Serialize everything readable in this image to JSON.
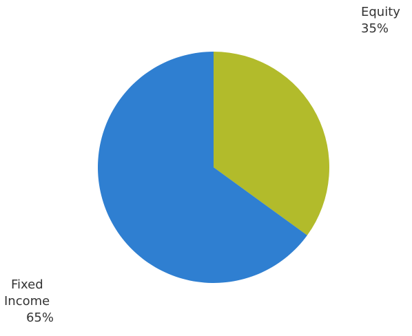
{
  "chart_data": {
    "type": "pie",
    "title": "",
    "start_angle_deg": 0,
    "direction": "clockwise",
    "legend": "none",
    "slices": [
      {
        "name": "Equity",
        "label_lines": [
          "Equity"
        ],
        "percent_label": "35%",
        "value": 35,
        "color": "#b2bb2b"
      },
      {
        "name": "Fixed Income",
        "label_lines": [
          "Fixed",
          "Income"
        ],
        "percent_label": "65%",
        "value": 65,
        "color": "#2f7fd1"
      }
    ]
  }
}
